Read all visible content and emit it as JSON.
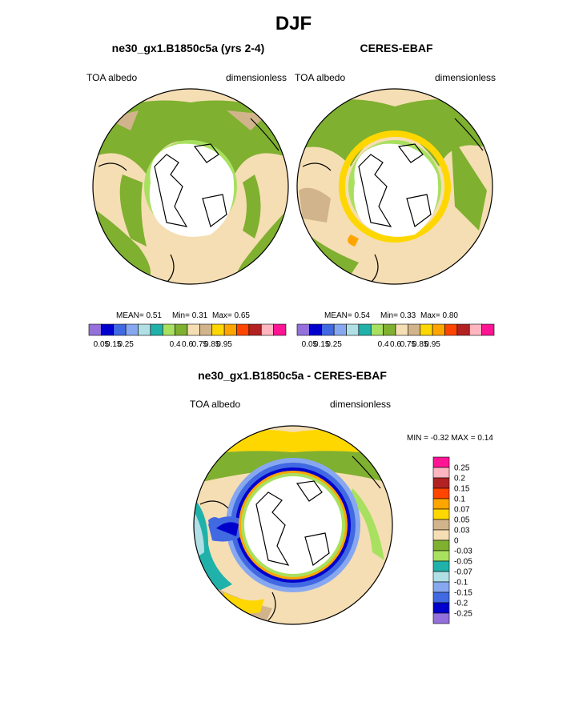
{
  "figure": {
    "title": "DJF"
  },
  "panels": [
    {
      "title": "ne30_gx1.B1850c5a (yrs 2-4)",
      "left_label": "TOA albedo",
      "right_label": "dimensionless",
      "stats": {
        "mean": "MEAN=   0.51",
        "min": "Min=   0.31",
        "max": "Max=   0.65"
      }
    },
    {
      "title": "CERES-EBAF",
      "left_label": "TOA albedo",
      "right_label": "dimensionless",
      "stats": {
        "mean": "MEAN=   0.54",
        "min": "Min=   0.33",
        "max": "Max=   0.80"
      }
    },
    {
      "title": "ne30_gx1.B1850c5a - CERES-EBAF",
      "left_label": "TOA albedo",
      "right_label": "dimensionless",
      "minmax": "MIN =  -0.32 MAX =   0.14"
    }
  ],
  "colorbars": {
    "abs_colors": [
      "#9370db",
      "#0000cd",
      "#4169e1",
      "#87a8f0",
      "#b0dfe6",
      "#20b2aa",
      "#a8e060",
      "#7fb030",
      "#f5deb3",
      "#d2b48c",
      "#ffd700",
      "#ffa500",
      "#ff4500",
      "#b22222",
      "#ffb6c1",
      "#ff1493"
    ],
    "abs_ticks": [
      "0.05",
      "0.15",
      "0.25",
      "0.4",
      "0.6",
      "0.75",
      "0.85",
      "0.95"
    ],
    "diff_colors": [
      "#9370db",
      "#0000cd",
      "#4169e1",
      "#87a8f0",
      "#b0dfe6",
      "#20b2aa",
      "#a8e060",
      "#7fb030",
      "#f5deb3",
      "#d2b48c",
      "#ffd700",
      "#ffa500",
      "#ff4500",
      "#b22222",
      "#ffb6c1",
      "#ff1493"
    ],
    "diff_ticks": [
      "-0.25",
      "-0.2",
      "-0.15",
      "-0.1",
      "-0.07",
      "-0.05",
      "-0.03",
      "0",
      "0.03",
      "0.05",
      "0.07",
      "0.1",
      "0.15",
      "0.2",
      "0.25"
    ]
  }
}
